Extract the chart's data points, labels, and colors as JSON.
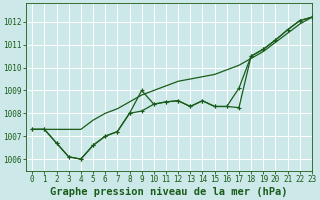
{
  "background_color": "#cce8e8",
  "grid_color": "#ffffff",
  "line_color": "#1a5c1a",
  "title": "Graphe pression niveau de la mer (hPa)",
  "xlim": [
    -0.5,
    23
  ],
  "ylim": [
    1005.5,
    1012.8
  ],
  "yticks": [
    1006,
    1007,
    1008,
    1009,
    1010,
    1011,
    1012
  ],
  "xticks": [
    0,
    1,
    2,
    3,
    4,
    5,
    6,
    7,
    8,
    9,
    10,
    11,
    12,
    13,
    14,
    15,
    16,
    17,
    18,
    19,
    20,
    21,
    22,
    23
  ],
  "series": [
    {
      "x": [
        0,
        1,
        2,
        3,
        4,
        5,
        6,
        7,
        8,
        9,
        10,
        11,
        12,
        13,
        14,
        15,
        16,
        17,
        18,
        19,
        20,
        21,
        22,
        23
      ],
      "y": [
        1007.3,
        1007.3,
        1007.3,
        1007.3,
        1007.3,
        1007.7,
        1008.0,
        1008.2,
        1008.5,
        1008.8,
        1009.0,
        1009.2,
        1009.4,
        1009.5,
        1009.6,
        1009.7,
        1009.9,
        1010.1,
        1010.4,
        1010.7,
        1011.1,
        1011.5,
        1011.9,
        1012.2
      ],
      "has_markers": false
    },
    {
      "x": [
        0,
        1,
        2,
        3,
        4,
        5,
        6,
        7,
        8,
        9,
        10,
        11,
        12,
        13,
        14,
        15,
        16,
        17,
        18,
        19,
        20,
        21,
        22,
        23
      ],
      "y": [
        1007.3,
        1007.3,
        1006.7,
        1006.1,
        1006.0,
        1006.6,
        1007.0,
        1007.2,
        1008.0,
        1008.1,
        1008.4,
        1008.5,
        1008.55,
        1008.3,
        1008.55,
        1008.3,
        1008.3,
        1008.25,
        1010.5,
        1010.8,
        1011.2,
        1011.65,
        1012.05,
        1012.2
      ],
      "has_markers": true
    },
    {
      "x": [
        0,
        1,
        2,
        3,
        4,
        5,
        6,
        7,
        8,
        9,
        10,
        11,
        12,
        13,
        14,
        15,
        16,
        17,
        18,
        19,
        20,
        21,
        22,
        23
      ],
      "y": [
        1007.3,
        1007.3,
        1006.7,
        1006.1,
        1006.0,
        1006.6,
        1007.0,
        1007.2,
        1008.0,
        1009.0,
        1008.4,
        1008.5,
        1008.55,
        1008.3,
        1008.55,
        1008.3,
        1008.3,
        1009.1,
        1010.5,
        1010.8,
        1011.2,
        1011.65,
        1012.05,
        1012.2
      ],
      "has_markers": true
    }
  ],
  "marker": "+",
  "markersize": 3,
  "linewidth": 0.9,
  "title_fontsize": 7.5,
  "tick_fontsize": 5.5
}
